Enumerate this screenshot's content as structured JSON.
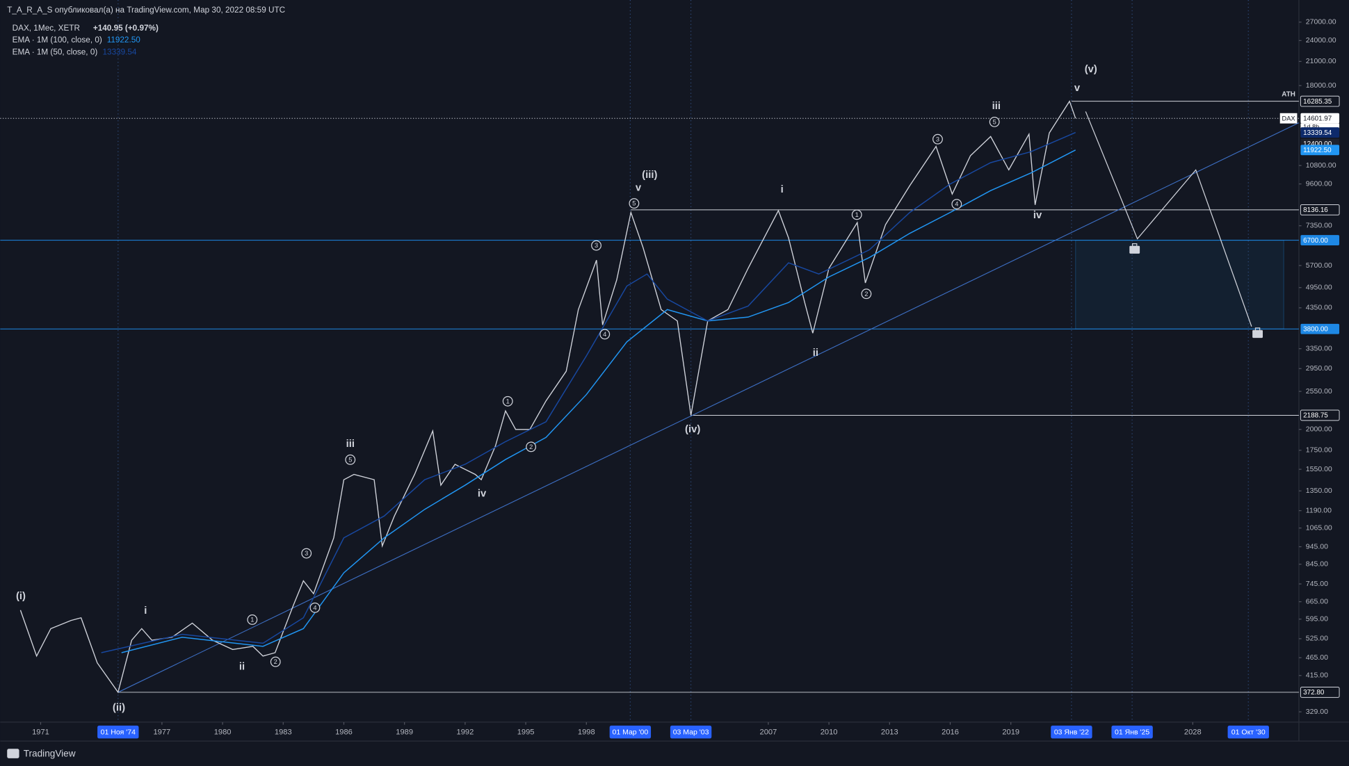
{
  "header": {
    "publisher": "T_A_R_A_S опубликовал(а) на TradingView.com, Мар 30, 2022 08:59 UTC",
    "brand": "TradingView"
  },
  "chart_data": {
    "type": "line",
    "log_scale": true,
    "grid": false,
    "xlim": [
      1969,
      2033.25
    ],
    "ylim": [
      308,
      31100
    ],
    "xticks": [
      1971,
      1977,
      1980,
      1983,
      1986,
      1989,
      1992,
      1995,
      1998,
      2007,
      2010,
      2013,
      2016,
      2019,
      2028
    ],
    "yticks": [
      {
        "value": 27000,
        "label": "27000.00"
      },
      {
        "value": 24000,
        "label": "24000.00"
      },
      {
        "value": 21000,
        "label": "21000.00"
      },
      {
        "value": 18000,
        "label": "18000.00"
      },
      {
        "value": 10800,
        "label": "10800.00"
      },
      {
        "value": 9600,
        "label": "9600.00"
      },
      {
        "value": 7350,
        "label": "7350.00"
      },
      {
        "value": 5700,
        "label": "5700.00"
      },
      {
        "value": 4950,
        "label": "4950.00"
      },
      {
        "value": 4350,
        "label": "4350.00"
      },
      {
        "value": 3350,
        "label": "3350.00"
      },
      {
        "value": 2950,
        "label": "2950.00"
      },
      {
        "value": 2550,
        "label": "2550.00"
      },
      {
        "value": 2000,
        "label": "2000.00"
      },
      {
        "value": 1750,
        "label": "1750.00"
      },
      {
        "value": 1550,
        "label": "1550.00"
      },
      {
        "value": 1350,
        "label": "1350.00"
      },
      {
        "value": 1190,
        "label": "1190.00"
      },
      {
        "value": 1065,
        "label": "1065.00"
      },
      {
        "value": 945,
        "label": "945.00"
      },
      {
        "value": 845,
        "label": "845.00"
      },
      {
        "value": 745,
        "label": "745.00"
      },
      {
        "value": 665,
        "label": "665.00"
      },
      {
        "value": 595,
        "label": "595.00"
      },
      {
        "value": 525,
        "label": "525.00"
      },
      {
        "value": 465,
        "label": "465.00"
      },
      {
        "value": 415,
        "label": "415.00"
      },
      {
        "value": 329,
        "label": "329.00"
      }
    ],
    "series": [
      {
        "name": "DAX, 1Мес, XETR",
        "last_label": "+140.95 (+0.97%)",
        "color": "#d1d4dc",
        "x": [
          1970.0,
          1970.8,
          1971.5,
          1972.5,
          1973.0,
          1973.8,
          1974.83,
          1975.5,
          1976.0,
          1976.5,
          1977.5,
          1978.5,
          1979.5,
          1980.5,
          1981.5,
          1982.0,
          1982.6,
          1983.5,
          1984.0,
          1984.5,
          1985.5,
          1986.0,
          1986.5,
          1987.5,
          1987.9,
          1988.5,
          1989.5,
          1990.4,
          1990.8,
          1991.5,
          1992.5,
          1992.8,
          1993.5,
          1994.0,
          1994.5,
          1995.2,
          1996.0,
          1997.0,
          1997.6,
          1998.5,
          1998.8,
          1999.5,
          2000.2,
          2000.8,
          2001.7,
          2002.5,
          2003.17,
          2004.0,
          2005.0,
          2006.0,
          2007.5,
          2008.0,
          2008.8,
          2009.2,
          2010.0,
          2011.4,
          2011.8,
          2012.8,
          2014.0,
          2015.3,
          2016.1,
          2017.0,
          2018.0,
          2018.9,
          2019.9,
          2020.2,
          2020.9,
          2021.9,
          2022.2
        ],
        "values": [
          630,
          470,
          560,
          590,
          600,
          450,
          372.8,
          520,
          560,
          520,
          530,
          580,
          520,
          490,
          500,
          470,
          480,
          650,
          760,
          700,
          1000,
          1450,
          1500,
          1450,
          950,
          1150,
          1500,
          1980,
          1400,
          1600,
          1500,
          1450,
          1800,
          2250,
          2000,
          2000,
          2400,
          2900,
          4300,
          5900,
          3900,
          5200,
          8000,
          6400,
          4300,
          4000,
          2188.75,
          4000,
          4300,
          5600,
          8100,
          6800,
          4500,
          3700,
          5600,
          7500,
          5100,
          7400,
          9500,
          12200,
          9000,
          11500,
          13000,
          10500,
          13200,
          8400,
          13300,
          16285.35,
          14601.97
        ]
      },
      {
        "name": "EMA · 1M (100, close, 0)",
        "last_label": "11922.50",
        "color": "#2196f3",
        "x": [
          1975.0,
          1978,
          1982,
          1984,
          1986,
          1988,
          1990,
          1992,
          1994,
          1996,
          1998,
          2000,
          2002,
          2004,
          2006,
          2008,
          2010,
          2012,
          2014,
          2016,
          2018,
          2020,
          2022.2
        ],
        "values": [
          480,
          530,
          500,
          560,
          800,
          1000,
          1200,
          1400,
          1650,
          1900,
          2500,
          3500,
          4300,
          4000,
          4100,
          4500,
          5300,
          6000,
          7000,
          8000,
          9200,
          10300,
          11922.5
        ]
      },
      {
        "name": "EMA · 1M (50, close, 0)",
        "last_label": "13339.54",
        "color": "#1848a0",
        "x": [
          1974,
          1978,
          1982,
          1984,
          1986,
          1988,
          1990,
          1992,
          1994,
          1996,
          1998,
          2000,
          2001,
          2002,
          2004,
          2006,
          2008,
          2009.5,
          2012,
          2014,
          2016,
          2018,
          2020,
          2022.2
        ],
        "values": [
          480,
          540,
          510,
          600,
          1000,
          1150,
          1450,
          1600,
          1850,
          2100,
          3200,
          5000,
          5400,
          4600,
          4000,
          4400,
          5800,
          5400,
          6300,
          8000,
          9600,
          11000,
          11800,
          13339.54
        ]
      }
    ],
    "levels": [
      {
        "value": 16285.35,
        "label": "16285.35",
        "from": 2022.0,
        "line": "#d1d4dc",
        "badge": "outline"
      },
      {
        "value": 14601.97,
        "label": "14601.97",
        "line": "#d1d4dc",
        "dash": true,
        "badge": "white",
        "tag": "DAX",
        "sub": "1d 8h"
      },
      {
        "value": 13339.54,
        "label": "13339.54",
        "badge": "#0d2a6b"
      },
      {
        "value": 12400,
        "label": "12400.00",
        "badge": "#1e222d"
      },
      {
        "value": 11922.5,
        "label": "11922.50",
        "badge": "#2196f3"
      },
      {
        "value": 8136.16,
        "label": "8136.16",
        "from": 2000.2,
        "line": "#d1d4dc",
        "badge": "outline"
      },
      {
        "value": 6700,
        "label": "6700.00",
        "line": "#1e88e5",
        "badge": "#1e88e5"
      },
      {
        "value": 3800,
        "label": "3800.00",
        "line": "#1e88e5",
        "badge": "#1e88e5"
      },
      {
        "value": 2188.75,
        "label": "2188.75",
        "from": 2003.17,
        "line": "#d1d4dc",
        "badge": "outline"
      },
      {
        "value": 372.8,
        "label": "372.80",
        "from": 1974.83,
        "line": "#d1d4dc",
        "badge": "outline"
      }
    ],
    "date_markers": [
      {
        "label": "01 Ноя '74",
        "x": 1974.83
      },
      {
        "label": "01 Мар '00",
        "x": 2000.17
      },
      {
        "label": "03 Мар '03",
        "x": 2003.17
      },
      {
        "label": "03 Янв '22",
        "x": 2022.0
      },
      {
        "label": "01 Янв '25",
        "x": 2025.0
      },
      {
        "label": "01 Окт '30",
        "x": 2030.75
      }
    ],
    "trendline": [
      [
        1974.83,
        372.8
      ],
      [
        2033.25,
        14190
      ]
    ],
    "projection": [
      [
        2022.7,
        15250
      ],
      [
        2025.26,
        6760
      ],
      [
        2028.15,
        10500
      ],
      [
        2030.91,
        3860
      ]
    ],
    "zone": {
      "x": [
        2022.2,
        2032.5
      ],
      "y": [
        3800,
        6700
      ]
    },
    "annotations": [
      {
        "text": "(i)",
        "x": 1970.02,
        "y": 687
      },
      {
        "text": "(ii)",
        "x": 1974.87,
        "y": 337
      },
      {
        "text": "i",
        "x": 1976.19,
        "y": 626
      },
      {
        "text": "ii",
        "x": 1980.96,
        "y": 438
      },
      {
        "text": "1",
        "x": 1981.47,
        "y": 593,
        "circled": true
      },
      {
        "text": "2",
        "x": 1982.62,
        "y": 453,
        "circled": true
      },
      {
        "text": "3",
        "x": 1984.15,
        "y": 906,
        "circled": true
      },
      {
        "text": "4",
        "x": 1984.57,
        "y": 640,
        "circled": true
      },
      {
        "text": "iii",
        "x": 1986.32,
        "y": 1819
      },
      {
        "text": "5",
        "x": 1986.32,
        "y": 1648,
        "circled": true
      },
      {
        "text": "iv",
        "x": 1992.83,
        "y": 1323
      },
      {
        "text": "1",
        "x": 1994.11,
        "y": 2394,
        "circled": true
      },
      {
        "text": "2",
        "x": 1995.26,
        "y": 1789,
        "circled": true
      },
      {
        "text": "3",
        "x": 1998.49,
        "y": 6478,
        "circled": true
      },
      {
        "text": "4",
        "x": 1998.91,
        "y": 3674,
        "circled": true
      },
      {
        "text": "5",
        "x": 2000.36,
        "y": 8479,
        "circled": true
      },
      {
        "text": "v",
        "x": 2000.57,
        "y": 9358
      },
      {
        "text": "(iii)",
        "x": 2001.13,
        "y": 10160
      },
      {
        "text": "(iv)",
        "x": 2003.26,
        "y": 1997
      },
      {
        "text": "i",
        "x": 2007.68,
        "y": 9255
      },
      {
        "text": "ii",
        "x": 2009.34,
        "y": 3256
      },
      {
        "text": "1",
        "x": 2011.38,
        "y": 7886,
        "circled": true
      },
      {
        "text": "2",
        "x": 2011.85,
        "y": 4757,
        "circled": true
      },
      {
        "text": "3",
        "x": 2015.38,
        "y": 12780,
        "circled": true
      },
      {
        "text": "4",
        "x": 2016.32,
        "y": 8438,
        "circled": true
      },
      {
        "text": "iii",
        "x": 2018.28,
        "y": 15760
      },
      {
        "text": "5",
        "x": 2018.19,
        "y": 14270,
        "circled": true
      },
      {
        "text": "iv",
        "x": 2020.32,
        "y": 7840
      },
      {
        "text": "v",
        "x": 2022.28,
        "y": 17690
      },
      {
        "text": "(v)",
        "x": 2022.96,
        "y": 19950
      },
      {
        "text": "ATH",
        "x": 2032.74,
        "y": 17000,
        "small": true
      }
    ]
  }
}
